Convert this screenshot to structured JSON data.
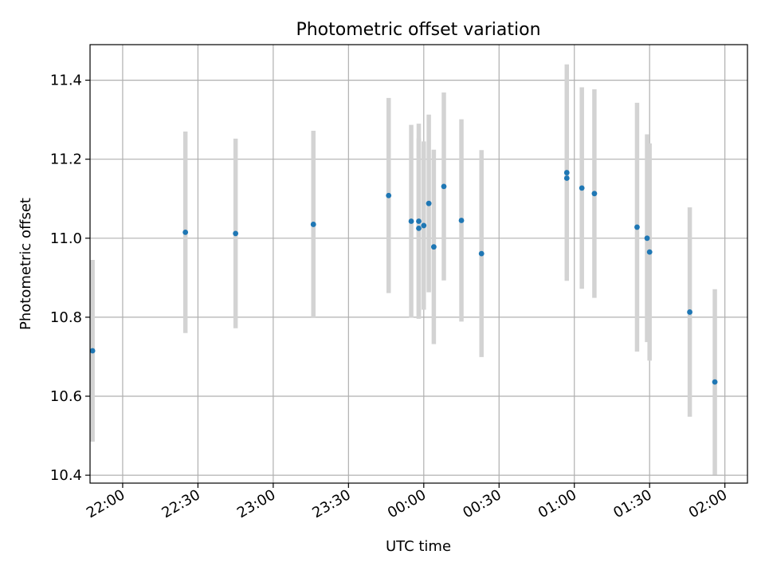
{
  "chart_data": {
    "type": "scatter",
    "title": "Photometric offset variation",
    "xlabel": "UTC time",
    "ylabel": "Photometric offset",
    "grid": true,
    "x_ticks": [
      "22:00",
      "22:30",
      "23:00",
      "23:30",
      "00:00",
      "00:30",
      "01:00",
      "01:30",
      "02:00"
    ],
    "y_ticks": [
      "10.4",
      "10.6",
      "10.8",
      "11.0",
      "11.2",
      "11.4"
    ],
    "y_tick_values": [
      10.4,
      10.6,
      10.8,
      11.0,
      11.2,
      11.4
    ],
    "ylim": [
      10.38,
      11.49
    ],
    "xlim": [
      "21:47",
      "02:09"
    ],
    "colors": {
      "points": "#1f77b4",
      "errorbars": "#d3d3d3"
    },
    "series": [
      {
        "points": [
          {
            "x": "21:48",
            "y": 10.715,
            "err": 0.23
          },
          {
            "x": "22:25",
            "y": 11.015,
            "err": 0.255
          },
          {
            "x": "22:45",
            "y": 11.012,
            "err": 0.24
          },
          {
            "x": "23:16",
            "y": 11.035,
            "err": 0.237
          },
          {
            "x": "23:46",
            "y": 11.108,
            "err": 0.247
          },
          {
            "x": "23:55",
            "y": 11.043,
            "err": 0.244
          },
          {
            "x": "23:58",
            "y": 11.025,
            "err": 0.228
          },
          {
            "x": "23:58",
            "y": 11.043,
            "err": 0.247
          },
          {
            "x": "00:00",
            "y": 11.032,
            "err": 0.213
          },
          {
            "x": "00:02",
            "y": 11.088,
            "err": 0.225
          },
          {
            "x": "00:04",
            "y": 10.978,
            "err": 0.246
          },
          {
            "x": "00:08",
            "y": 11.131,
            "err": 0.238
          },
          {
            "x": "00:15",
            "y": 11.045,
            "err": 0.256
          },
          {
            "x": "00:23",
            "y": 10.961,
            "err": 0.262
          },
          {
            "x": "00:57",
            "y": 11.166,
            "err": 0.274
          },
          {
            "x": "00:57",
            "y": 11.152,
            "err": 0.252
          },
          {
            "x": "01:03",
            "y": 11.127,
            "err": 0.255
          },
          {
            "x": "01:08",
            "y": 11.113,
            "err": 0.264
          },
          {
            "x": "01:25",
            "y": 11.028,
            "err": 0.315
          },
          {
            "x": "01:29",
            "y": 11.0,
            "err": 0.263
          },
          {
            "x": "01:30",
            "y": 10.965,
            "err": 0.275
          },
          {
            "x": "01:46",
            "y": 10.813,
            "err": 0.265
          },
          {
            "x": "01:56",
            "y": 10.636,
            "err": 0.235
          }
        ]
      }
    ]
  }
}
